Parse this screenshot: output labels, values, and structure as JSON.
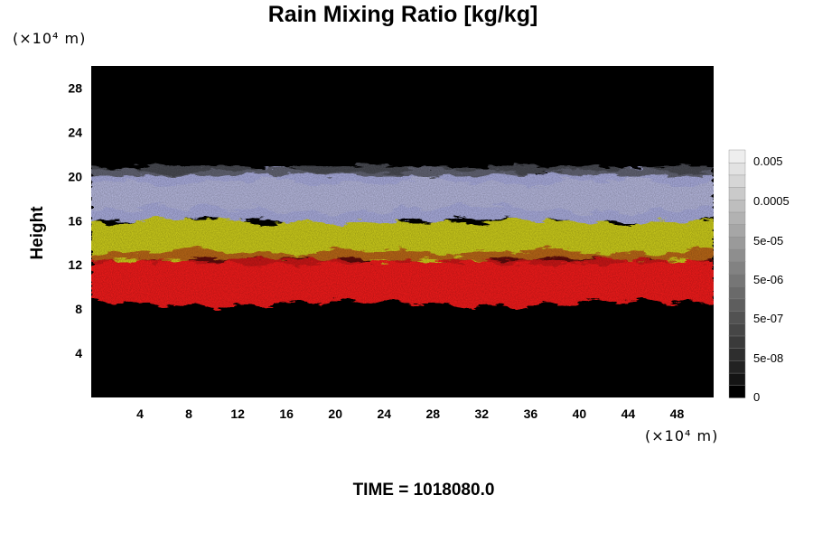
{
  "chart_data": {
    "type": "heatmap",
    "title": "Rain Mixing Ratio [kg/kg]",
    "ylabel": "Height",
    "xlabel": "",
    "x_unit": "(×10⁴ m)",
    "y_unit": "(×10⁴ m)",
    "x_ticks": [
      4,
      8,
      12,
      16,
      20,
      24,
      28,
      32,
      36,
      40,
      44,
      48
    ],
    "y_ticks": [
      4,
      8,
      12,
      16,
      20,
      24,
      28
    ],
    "xlim": [
      0,
      51
    ],
    "ylim": [
      0,
      30
    ],
    "background_color": "#000000",
    "layers": [
      {
        "name": "red",
        "color": "#ff1a1a",
        "y_range": [
          8.5,
          12.5
        ]
      },
      {
        "name": "yellow",
        "color": "#d8d81e",
        "y_range": [
          12.5,
          16
        ]
      },
      {
        "name": "lavender",
        "color": "#b3b6ea",
        "y_range": [
          16,
          20.5
        ]
      }
    ],
    "colorbar": {
      "tick_labels": [
        "0.005",
        "0.0005",
        "5e-05",
        "5e-06",
        "5e-07",
        "5e-08",
        "0"
      ],
      "colors": [
        "#000000",
        "#141414",
        "#222222",
        "#2e2e2e",
        "#3a3a3a",
        "#464646",
        "#525252",
        "#5e5e5e",
        "#6a6a6a",
        "#767676",
        "#828282",
        "#8e8e8e",
        "#9a9a9a",
        "#a6a6a6",
        "#b2b2b2",
        "#bebebe",
        "#cacaca",
        "#d6d6d6",
        "#e2e2e2",
        "#eeeeee"
      ]
    },
    "time_label": "TIME = 1018080.0"
  }
}
